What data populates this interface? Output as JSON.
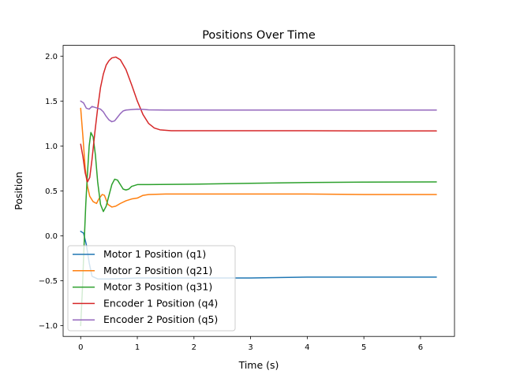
{
  "chart_data": {
    "type": "line",
    "title": "Positions Over Time",
    "xlabel": "Time (s)",
    "ylabel": "Position",
    "xlim": [
      -0.31,
      6.6
    ],
    "ylim": [
      -1.12,
      2.12
    ],
    "xticks": [
      0,
      1,
      2,
      3,
      4,
      5,
      6
    ],
    "xtick_labels": [
      "0",
      "1",
      "2",
      "3",
      "4",
      "5",
      "6"
    ],
    "yticks": [
      -1.0,
      -0.5,
      0.0,
      0.5,
      1.0,
      1.5,
      2.0
    ],
    "ytick_labels": [
      "−1.0",
      "−0.5",
      "0.0",
      "0.5",
      "1.0",
      "1.5",
      "2.0"
    ],
    "grid": false,
    "legend_position": "lower-left",
    "series": [
      {
        "name": "Motor 1 Position (q1)",
        "color": "#1f77b4",
        "points": [
          [
            0.0,
            0.05
          ],
          [
            0.05,
            0.03
          ],
          [
            0.1,
            -0.1
          ],
          [
            0.15,
            -0.3
          ],
          [
            0.2,
            -0.45
          ],
          [
            0.3,
            -0.48
          ],
          [
            0.5,
            -0.48
          ],
          [
            1.0,
            -0.47
          ],
          [
            2.0,
            -0.47
          ],
          [
            3.0,
            -0.47
          ],
          [
            4.0,
            -0.46
          ],
          [
            5.0,
            -0.46
          ],
          [
            6.28,
            -0.46
          ]
        ]
      },
      {
        "name": "Motor 2 Position (q21)",
        "color": "#ff7f0e",
        "points": [
          [
            0.0,
            1.42
          ],
          [
            0.04,
            1.1
          ],
          [
            0.08,
            0.75
          ],
          [
            0.12,
            0.55
          ],
          [
            0.16,
            0.44
          ],
          [
            0.22,
            0.38
          ],
          [
            0.28,
            0.36
          ],
          [
            0.32,
            0.41
          ],
          [
            0.38,
            0.46
          ],
          [
            0.42,
            0.45
          ],
          [
            0.48,
            0.35
          ],
          [
            0.55,
            0.32
          ],
          [
            0.62,
            0.33
          ],
          [
            0.7,
            0.36
          ],
          [
            0.8,
            0.39
          ],
          [
            0.9,
            0.41
          ],
          [
            1.0,
            0.42
          ],
          [
            1.1,
            0.45
          ],
          [
            1.2,
            0.46
          ],
          [
            1.5,
            0.465
          ],
          [
            2.0,
            0.465
          ],
          [
            3.0,
            0.465
          ],
          [
            4.0,
            0.465
          ],
          [
            5.0,
            0.46
          ],
          [
            6.28,
            0.46
          ]
        ]
      },
      {
        "name": "Motor 3 Position (q31)",
        "color": "#2ca02c",
        "points": [
          [
            0.0,
            -1.0
          ],
          [
            0.03,
            -0.6
          ],
          [
            0.06,
            -0.1
          ],
          [
            0.09,
            0.35
          ],
          [
            0.12,
            0.7
          ],
          [
            0.15,
            1.0
          ],
          [
            0.18,
            1.15
          ],
          [
            0.22,
            1.1
          ],
          [
            0.26,
            0.9
          ],
          [
            0.3,
            0.6
          ],
          [
            0.35,
            0.35
          ],
          [
            0.4,
            0.27
          ],
          [
            0.45,
            0.33
          ],
          [
            0.5,
            0.45
          ],
          [
            0.55,
            0.57
          ],
          [
            0.6,
            0.63
          ],
          [
            0.65,
            0.62
          ],
          [
            0.7,
            0.57
          ],
          [
            0.75,
            0.52
          ],
          [
            0.8,
            0.51
          ],
          [
            0.85,
            0.52
          ],
          [
            0.9,
            0.55
          ],
          [
            1.0,
            0.57
          ],
          [
            1.2,
            0.57
          ],
          [
            2.0,
            0.575
          ],
          [
            3.0,
            0.585
          ],
          [
            4.0,
            0.593
          ],
          [
            5.0,
            0.598
          ],
          [
            6.28,
            0.6
          ]
        ]
      },
      {
        "name": "Encoder 1 Position (q4)",
        "color": "#d62728",
        "points": [
          [
            0.0,
            1.02
          ],
          [
            0.04,
            0.88
          ],
          [
            0.08,
            0.7
          ],
          [
            0.12,
            0.6
          ],
          [
            0.16,
            0.65
          ],
          [
            0.2,
            0.85
          ],
          [
            0.25,
            1.15
          ],
          [
            0.3,
            1.42
          ],
          [
            0.35,
            1.65
          ],
          [
            0.4,
            1.8
          ],
          [
            0.45,
            1.9
          ],
          [
            0.5,
            1.95
          ],
          [
            0.55,
            1.98
          ],
          [
            0.62,
            1.99
          ],
          [
            0.7,
            1.96
          ],
          [
            0.8,
            1.85
          ],
          [
            0.9,
            1.68
          ],
          [
            1.0,
            1.5
          ],
          [
            1.1,
            1.35
          ],
          [
            1.2,
            1.25
          ],
          [
            1.3,
            1.2
          ],
          [
            1.4,
            1.18
          ],
          [
            1.6,
            1.17
          ],
          [
            2.0,
            1.17
          ],
          [
            3.0,
            1.17
          ],
          [
            4.0,
            1.17
          ],
          [
            5.0,
            1.168
          ],
          [
            6.28,
            1.168
          ]
        ]
      },
      {
        "name": "Encoder 2 Position (q5)",
        "color": "#9467bd",
        "points": [
          [
            0.0,
            1.5
          ],
          [
            0.05,
            1.48
          ],
          [
            0.1,
            1.42
          ],
          [
            0.15,
            1.41
          ],
          [
            0.2,
            1.44
          ],
          [
            0.25,
            1.43
          ],
          [
            0.3,
            1.42
          ],
          [
            0.35,
            1.41
          ],
          [
            0.4,
            1.38
          ],
          [
            0.45,
            1.33
          ],
          [
            0.5,
            1.29
          ],
          [
            0.55,
            1.27
          ],
          [
            0.6,
            1.28
          ],
          [
            0.65,
            1.32
          ],
          [
            0.7,
            1.36
          ],
          [
            0.75,
            1.39
          ],
          [
            0.8,
            1.4
          ],
          [
            0.9,
            1.405
          ],
          [
            1.0,
            1.41
          ],
          [
            1.1,
            1.408
          ],
          [
            1.2,
            1.402
          ],
          [
            1.5,
            1.4
          ],
          [
            2.0,
            1.4
          ],
          [
            3.0,
            1.4
          ],
          [
            4.0,
            1.4
          ],
          [
            5.0,
            1.4
          ],
          [
            6.28,
            1.4
          ]
        ]
      }
    ]
  }
}
